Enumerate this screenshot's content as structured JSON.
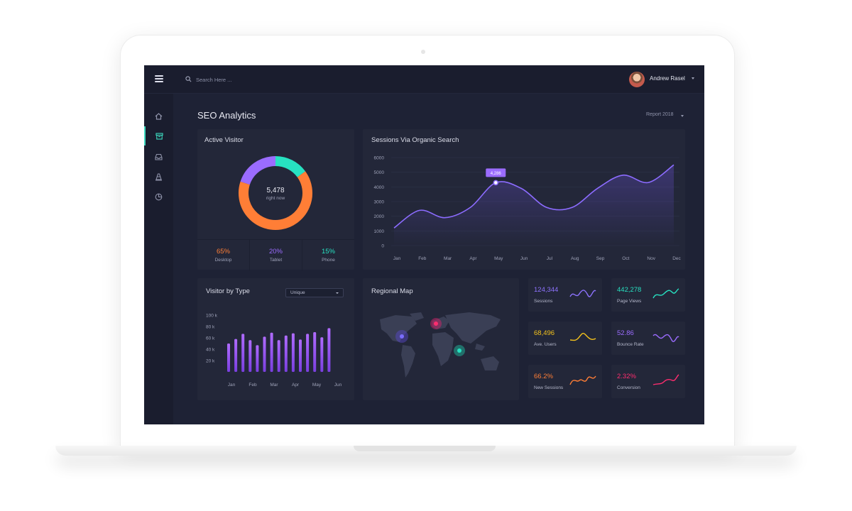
{
  "colors": {
    "orange": "#ff7e36",
    "purple": "#9b6cff",
    "teal": "#27e1c1",
    "yellow": "#f4c21c",
    "pink": "#ff2d6f",
    "violet": "#8e73ff"
  },
  "topbar": {
    "search_placeholder": "Search Here ...",
    "user_name": "Andrew Rasel"
  },
  "sidebar": {
    "items": [
      {
        "icon": "home-icon"
      },
      {
        "icon": "archive-icon",
        "active": true
      },
      {
        "icon": "inbox-icon"
      },
      {
        "icon": "traffic-cone-icon"
      },
      {
        "icon": "pie-chart-icon"
      }
    ]
  },
  "page": {
    "title": "SEO Analytics",
    "report_select": "Report 2018"
  },
  "active_visitor": {
    "title": "Active Visitor",
    "center_value": "5,478",
    "center_label": "right now",
    "stats": [
      {
        "value": "65%",
        "label": "Desktop",
        "color": "#ff7e36"
      },
      {
        "value": "20%",
        "label": "Tablet",
        "color": "#9b6cff"
      },
      {
        "value": "15%",
        "label": "Phone",
        "color": "#27e1c1"
      }
    ]
  },
  "sessions": {
    "title": "Sessions Via Organic Search",
    "tooltip": "4,286"
  },
  "visitor_type": {
    "title": "Visitor by Type",
    "dropdown": "Unique"
  },
  "regional_map": {
    "title": "Regional Map"
  },
  "metrics": [
    {
      "value": "124,344",
      "label": "Sessions",
      "color": "#8e73ff"
    },
    {
      "value": "442,278",
      "label": "Page Views",
      "color": "#27e1c1"
    },
    {
      "value": "68,496",
      "label": "Ave. Users",
      "color": "#f4c21c"
    },
    {
      "value": "52.86",
      "label": "Bounce Rate",
      "color": "#9b6cff"
    },
    {
      "value": "66.2%",
      "label": "New Sessions",
      "color": "#ff7e36"
    },
    {
      "value": "2.32%",
      "label": "Conversion",
      "color": "#ff2d6f"
    }
  ],
  "chart_data": [
    {
      "type": "pie",
      "title": "Active Visitor",
      "categories": [
        "Desktop",
        "Tablet",
        "Phone"
      ],
      "values": [
        65,
        20,
        15
      ]
    },
    {
      "type": "area",
      "title": "Sessions Via Organic Search",
      "categories": [
        "Jan",
        "Feb",
        "Mar",
        "Apr",
        "May",
        "Jun",
        "Jul",
        "Aug",
        "Sep",
        "Oct",
        "Nov",
        "Dec"
      ],
      "y_ticks": [
        "6000",
        "5000",
        "4000",
        "3000",
        "2000",
        "1000",
        "0"
      ],
      "values": [
        1200,
        2400,
        1900,
        2600,
        4286,
        3900,
        2600,
        2600,
        3900,
        4800,
        4300,
        5500
      ],
      "ylim": [
        0,
        6000
      ],
      "grid": true
    },
    {
      "type": "bar",
      "title": "Visitor by Type",
      "x_ticks": [
        "Jan",
        "Feb",
        "Mar",
        "Apr",
        "May",
        "Jun"
      ],
      "y_ticks": [
        "100 k",
        "80 k",
        "60 k",
        "40 k",
        "20 k"
      ],
      "values": [
        50,
        58,
        67,
        56,
        47,
        62,
        69,
        56,
        64,
        68,
        57,
        67,
        70,
        61,
        77
      ],
      "ylim": [
        0,
        100
      ]
    }
  ]
}
